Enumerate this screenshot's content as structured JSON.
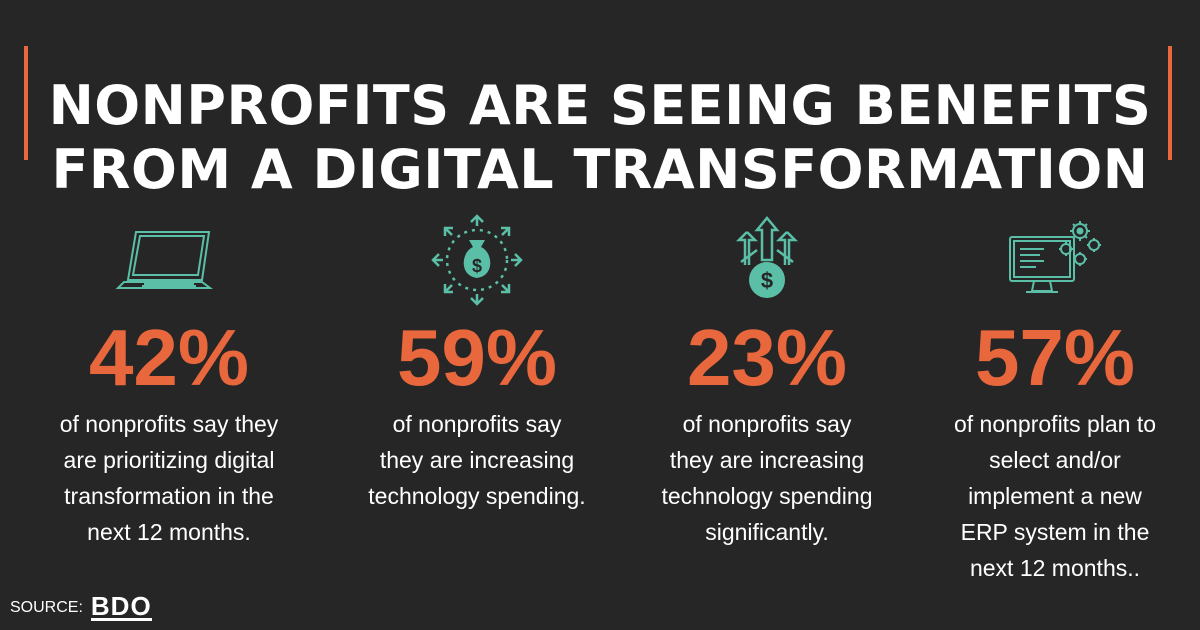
{
  "title": {
    "line1": "NONPROFITS ARE SEEING BENEFITS",
    "line2": "FROM A DIGITAL TRANSFORMATION"
  },
  "stats": [
    {
      "icon": "laptop-icon",
      "value": "42%",
      "description": "of nonprofits say they\nare prioritizing digital\ntransformation in the\nnext 12 months."
    },
    {
      "icon": "money-bag-growth-icon",
      "value": "59%",
      "description": "of nonprofits say\nthey are increasing\ntechnology spending."
    },
    {
      "icon": "dollar-arrows-up-icon",
      "value": "23%",
      "description": "of nonprofits say\nthey are increasing\ntechnology spending\nsignificantly."
    },
    {
      "icon": "monitor-gears-icon",
      "value": "57%",
      "description": "of nonprofits plan to\nselect and/or\nimplement a new\nERP system in the\nnext 12 months.."
    }
  ],
  "source": {
    "label": "SOURCE:",
    "brand": "BDO"
  },
  "colors": {
    "accent": "#e8673c",
    "icon": "#5bbfa8",
    "background": "#262626",
    "text": "#ffffff"
  }
}
